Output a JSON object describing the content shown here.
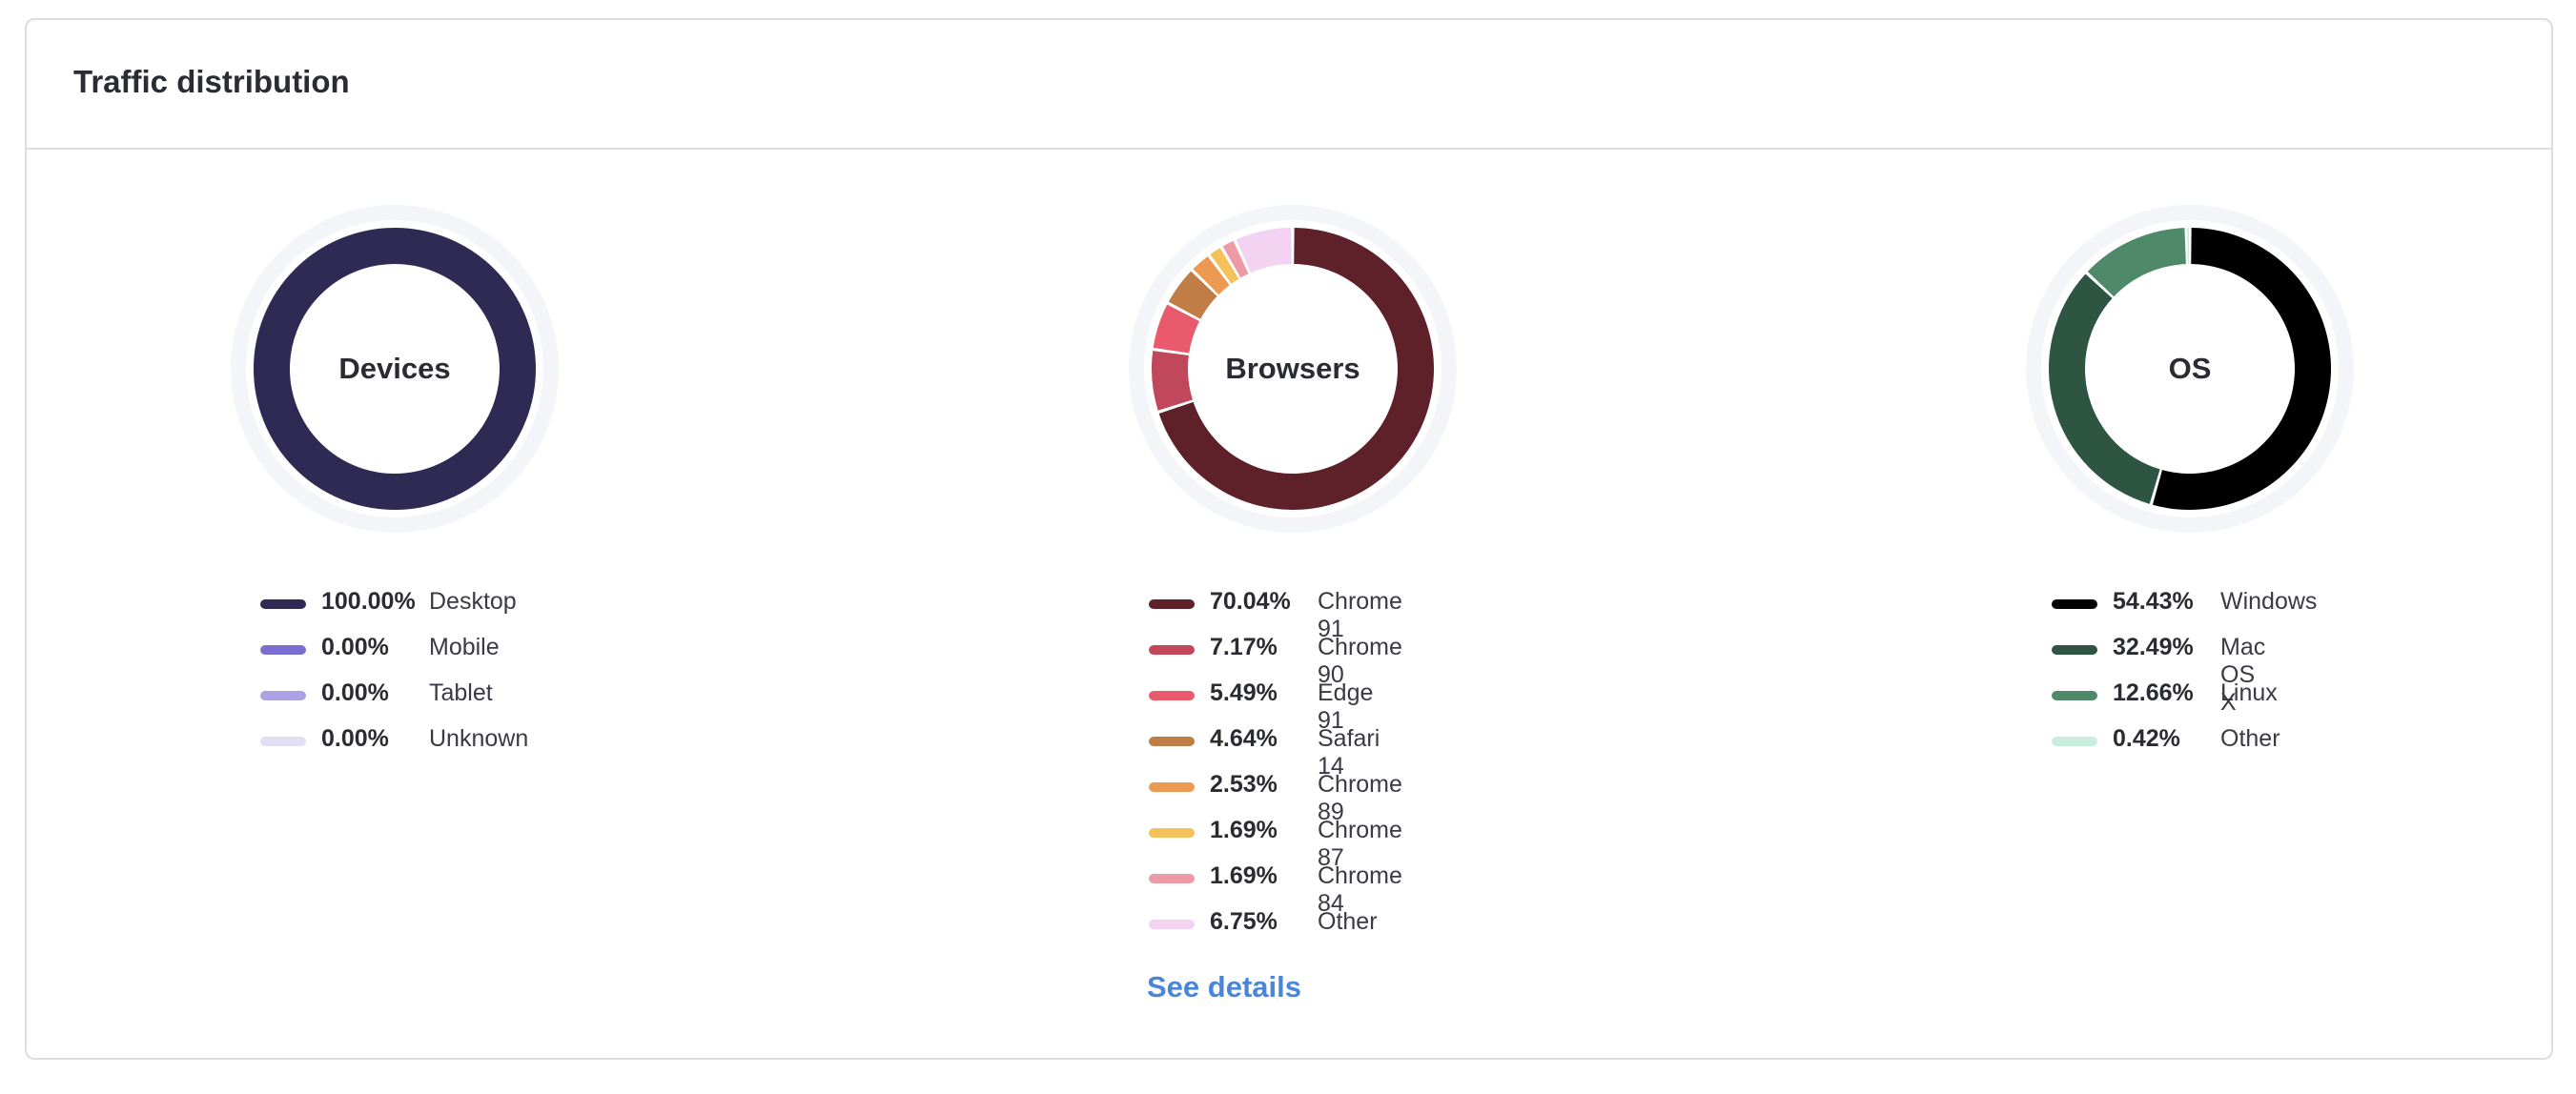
{
  "card": {
    "title": "Traffic distribution"
  },
  "see_details_label": "See details",
  "charts": [
    {
      "label": "Devices",
      "items": [
        {
          "pct": "100.00%",
          "name": "Desktop",
          "color": "#2e2a54"
        },
        {
          "pct": "0.00%",
          "name": "Mobile",
          "color": "#7a6fd0"
        },
        {
          "pct": "0.00%",
          "name": "Tablet",
          "color": "#aaa2e4"
        },
        {
          "pct": "0.00%",
          "name": "Unknown",
          "color": "#e2def4"
        }
      ]
    },
    {
      "label": "Browsers",
      "items": [
        {
          "pct": "70.04%",
          "name": "Chrome 91",
          "color": "#5e2029"
        },
        {
          "pct": "7.17%",
          "name": "Chrome 90",
          "color": "#c0485a"
        },
        {
          "pct": "5.49%",
          "name": "Edge 91",
          "color": "#e85a6c"
        },
        {
          "pct": "4.64%",
          "name": "Safari 14",
          "color": "#c07d46"
        },
        {
          "pct": "2.53%",
          "name": "Chrome 89",
          "color": "#ec9a52"
        },
        {
          "pct": "1.69%",
          "name": "Chrome 87",
          "color": "#f4c15a"
        },
        {
          "pct": "1.69%",
          "name": "Chrome 84",
          "color": "#ec9ba6"
        },
        {
          "pct": "6.75%",
          "name": "Other",
          "color": "#f3d2f2"
        }
      ]
    },
    {
      "label": "OS",
      "items": [
        {
          "pct": "54.43%",
          "name": "Windows",
          "color": "#000000"
        },
        {
          "pct": "32.49%",
          "name": "Mac OS X",
          "color": "#2e5442"
        },
        {
          "pct": "12.66%",
          "name": "Linux",
          "color": "#4e8a6a"
        },
        {
          "pct": "0.42%",
          "name": "Other",
          "color": "#c8eede"
        }
      ]
    }
  ]
}
